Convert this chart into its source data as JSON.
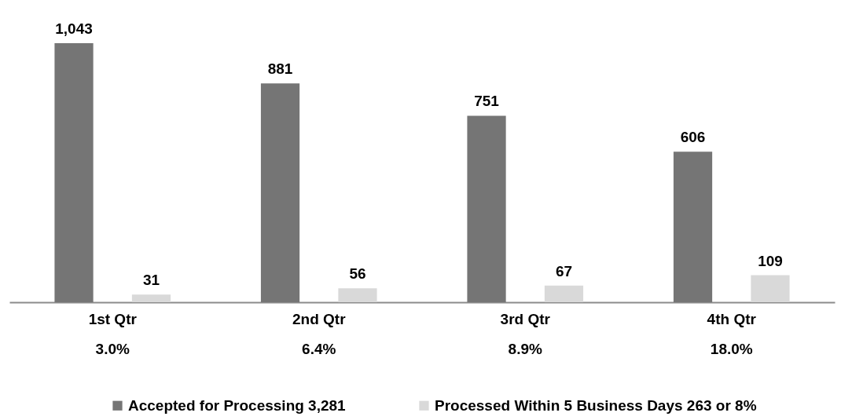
{
  "chart_data": {
    "type": "bar",
    "categories": [
      "1st Qtr\n3.0%",
      "2nd Qtr\n6.4%",
      "3rd Qtr\n8.9%",
      "4th Qtr\n18.0%"
    ],
    "series": [
      {
        "name": "Accepted for Processing 3,281",
        "color": "#757575",
        "values": [
          1043,
          881,
          751,
          606
        ],
        "value_labels": [
          "1,043",
          "881",
          "751",
          "606"
        ]
      },
      {
        "name": "Processed Within 5 Business Days 263 or 8%",
        "color": "#d9d9d9",
        "values": [
          31,
          56,
          67,
          109
        ],
        "value_labels": [
          "31",
          "56",
          "67",
          "109"
        ]
      }
    ],
    "tick_labels": "x",
    "legend": "bottom"
  }
}
